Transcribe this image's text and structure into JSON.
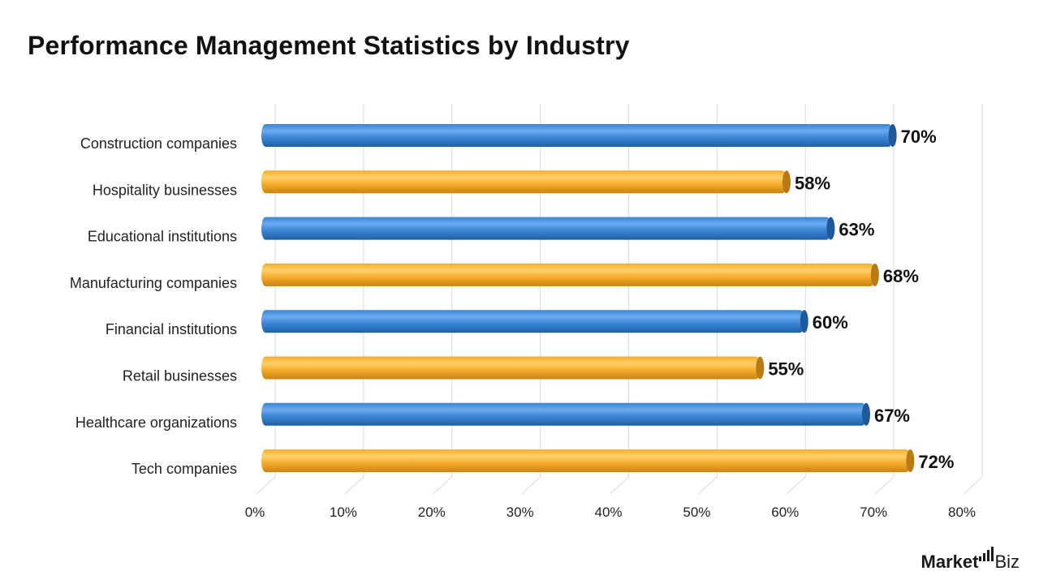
{
  "chart_data": {
    "type": "bar",
    "orientation": "horizontal",
    "title": "Performance Management Statistics by Industry",
    "categories": [
      "Construction companies",
      "Hospitality businesses",
      "Educational institutions",
      "Manufacturing companies",
      "Financial institutions",
      "Retail businesses",
      "Healthcare organizations",
      "Tech companies"
    ],
    "values": [
      70,
      58,
      63,
      68,
      60,
      55,
      67,
      72
    ],
    "value_labels": [
      "70%",
      "58%",
      "63%",
      "68%",
      "60%",
      "55%",
      "67%",
      "72%"
    ],
    "bar_colors": [
      "#3a86d4",
      "#f6ab2b",
      "#3a86d4",
      "#f6ab2b",
      "#3a86d4",
      "#f6ab2b",
      "#3a86d4",
      "#f6ab2b"
    ],
    "xlim": [
      0,
      80
    ],
    "x_ticks": [
      0,
      10,
      20,
      30,
      40,
      50,
      60,
      70,
      80
    ],
    "x_tick_labels": [
      "0%",
      "10%",
      "20%",
      "30%",
      "40%",
      "50%",
      "60%",
      "70%",
      "80%"
    ],
    "xlabel": "",
    "ylabel": "",
    "grid": true,
    "style": "3d-cylinder"
  },
  "branding": {
    "logo_main": "Market",
    "logo_suffix": "Biz"
  }
}
